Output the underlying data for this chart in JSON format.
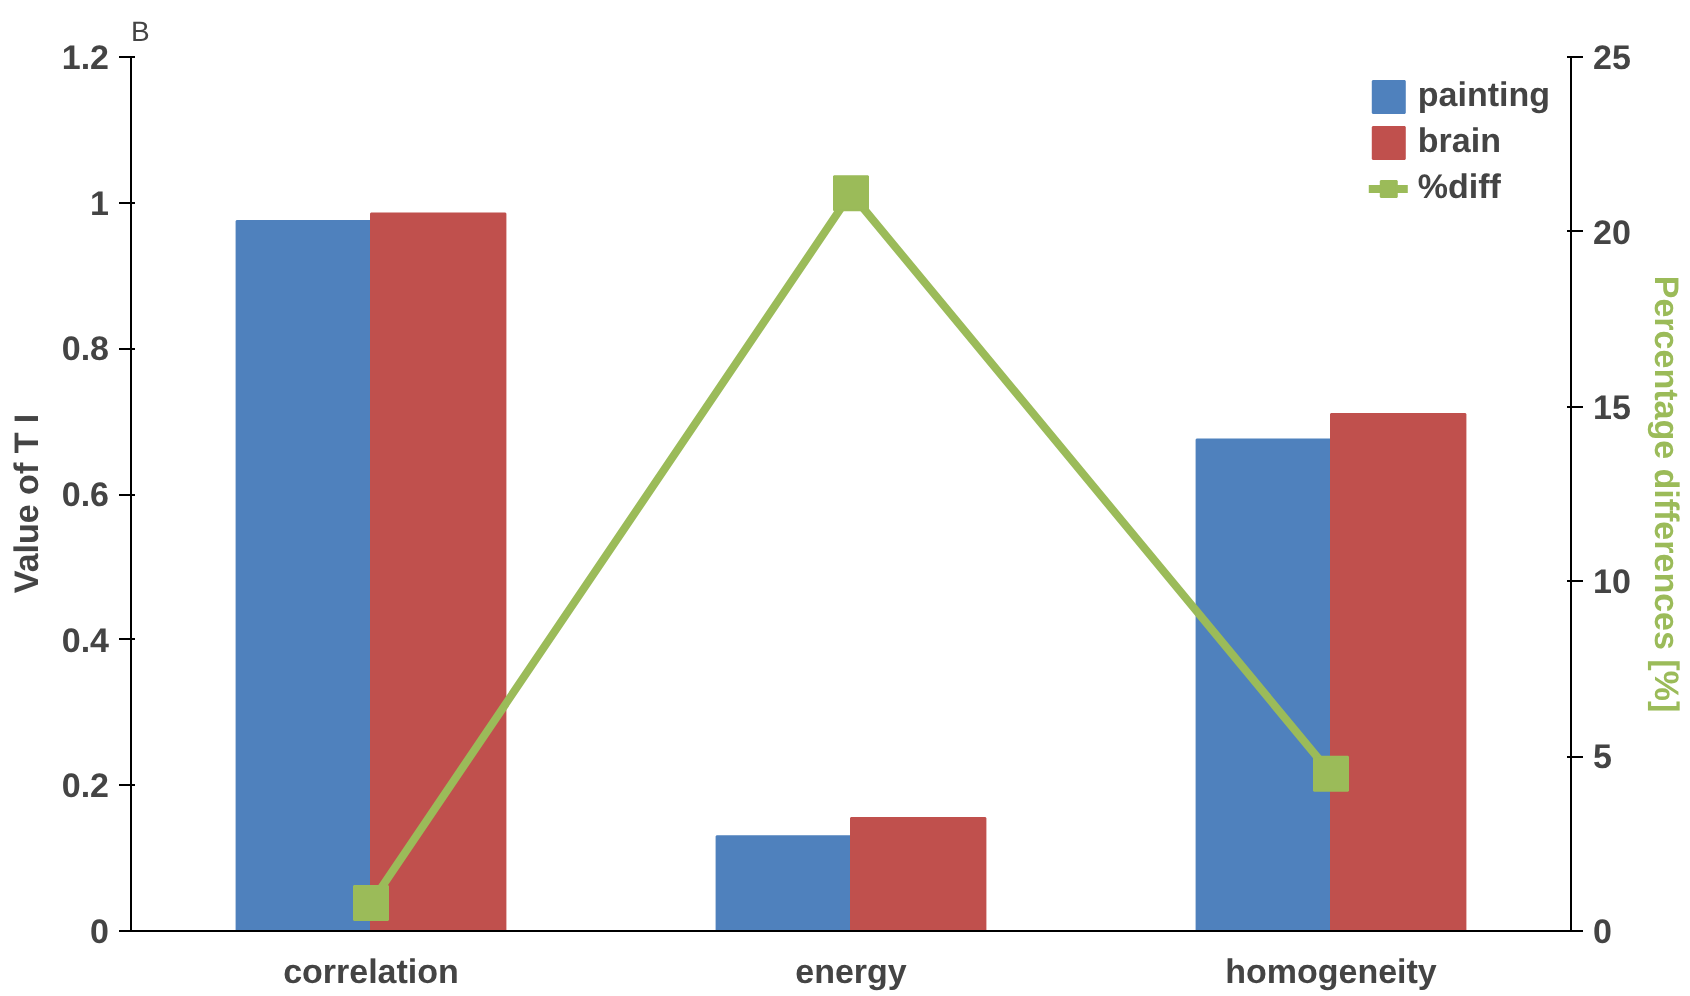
{
  "chart_data": {
    "type": "bar",
    "title": "B",
    "ylabel": "Value  of  T I",
    "y2label": "Percentage differences [%]",
    "categories": [
      "correlation",
      "energy",
      "homogeneity"
    ],
    "series": [
      {
        "name": "painting",
        "color": "#4f81bd",
        "values": [
          0.975,
          0.13,
          0.675
        ]
      },
      {
        "name": "brain",
        "color": "#c0504d",
        "values": [
          0.985,
          0.155,
          0.71
        ]
      },
      {
        "name": "%diff",
        "type": "line",
        "axis": "y2",
        "color": "#9bbb59",
        "marker": "square",
        "values": [
          0.8,
          21.1,
          4.5
        ]
      }
    ],
    "ylim": [
      0,
      1.2
    ],
    "yticks": [
      0,
      0.2,
      0.4,
      0.6,
      0.8,
      1,
      1.2
    ],
    "y2lim": [
      0,
      25
    ],
    "y2ticks": [
      0,
      5,
      10,
      15,
      20,
      25
    ],
    "legend": "top right",
    "grid": false
  }
}
